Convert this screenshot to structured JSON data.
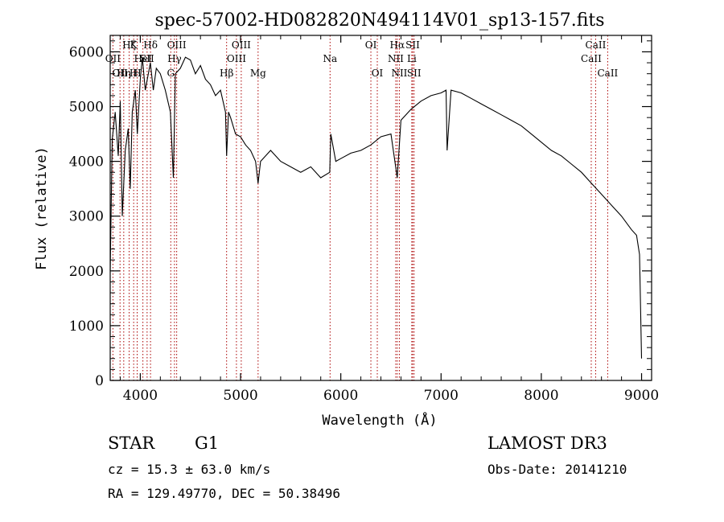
{
  "chart_data": {
    "type": "line",
    "title": "spec-57002-HD082820N494114V01_sp13-157.fits",
    "xlabel": "Wavelength (Å)",
    "ylabel": "Flux (relative)",
    "xlim": [
      3700,
      9100
    ],
    "ylim": [
      0,
      6300
    ],
    "xticks": [
      4000,
      5000,
      6000,
      7000,
      8000,
      9000
    ],
    "yticks": [
      0,
      1000,
      2000,
      3000,
      4000,
      5000,
      6000
    ],
    "grid": false,
    "line_color": "#000000",
    "marker_color": "#aa0000",
    "series": [
      {
        "x": [
          3700,
          3720,
          3750,
          3780,
          3800,
          3820,
          3850,
          3880,
          3900,
          3920,
          3950,
          3970,
          4000,
          4020,
          4050,
          4080,
          4100,
          4130,
          4160,
          4200,
          4250,
          4300,
          4330,
          4350,
          4400,
          4450,
          4500,
          4550,
          4600,
          4650,
          4700,
          4750,
          4800,
          4850,
          4861,
          4880,
          4900,
          4950,
          5000,
          5050,
          5100,
          5150,
          5175,
          5200,
          5250,
          5300,
          5400,
          5500,
          5600,
          5700,
          5800,
          5890,
          5900,
          5950,
          6000,
          6100,
          6200,
          6300,
          6400,
          6500,
          6563,
          6600,
          6700,
          6800,
          6900,
          7000,
          7050,
          7060,
          7100,
          7200,
          7300,
          7400,
          7500,
          7600,
          7700,
          7800,
          7900,
          8000,
          8100,
          8200,
          8300,
          8400,
          8500,
          8600,
          8700,
          8800,
          8900,
          8950,
          8980,
          9000
        ],
        "y": [
          2000,
          4400,
          4900,
          4100,
          5100,
          3000,
          4200,
          4600,
          3500,
          4900,
          5300,
          4500,
          5500,
          5900,
          5300,
          5600,
          5800,
          5300,
          5700,
          5600,
          5300,
          4900,
          3700,
          5600,
          5700,
          5900,
          5850,
          5600,
          5750,
          5500,
          5400,
          5200,
          5300,
          4900,
          4100,
          4900,
          4800,
          4500,
          4450,
          4300,
          4200,
          4000,
          3600,
          4000,
          4100,
          4200,
          4000,
          3900,
          3800,
          3900,
          3700,
          3800,
          4500,
          4000,
          4050,
          4150,
          4200,
          4300,
          4450,
          4500,
          3700,
          4750,
          4950,
          5100,
          5200,
          5250,
          5300,
          4200,
          5300,
          5250,
          5150,
          5050,
          4950,
          4850,
          4750,
          4650,
          4500,
          4350,
          4200,
          4100,
          3950,
          3800,
          3600,
          3400,
          3200,
          3000,
          2750,
          2650,
          2300,
          400
        ]
      }
    ],
    "lines": [
      {
        "w": 3727,
        "labels": [
          "OII"
        ],
        "row": 1
      },
      {
        "w": 3798,
        "labels": [
          "OII"
        ],
        "row": 2
      },
      {
        "w": 3835,
        "labels": [
          "Hη"
        ],
        "row": 2
      },
      {
        "w": 3889,
        "labels": [
          "Hζ"
        ],
        "row": 0
      },
      {
        "w": 3934,
        "labels": [
          "K",
          "H"
        ],
        "row": 0
      },
      {
        "w": 3969,
        "labels": [
          "H"
        ],
        "row": 2
      },
      {
        "w": 4026,
        "labels": [
          "HeI"
        ],
        "row": 1
      },
      {
        "w": 4068,
        "labels": [
          "SII"
        ],
        "row": 1
      },
      {
        "w": 4102,
        "labels": [
          "Hδ"
        ],
        "row": 0
      },
      {
        "w": 4304,
        "labels": [
          "G"
        ],
        "row": 2
      },
      {
        "w": 4341,
        "labels": [
          "Hγ"
        ],
        "row": 1
      },
      {
        "w": 4363,
        "labels": [
          "OIII"
        ],
        "row": 0
      },
      {
        "w": 4861,
        "labels": [
          "Hβ"
        ],
        "row": 2
      },
      {
        "w": 4959,
        "labels": [
          "OIII"
        ],
        "row": 1
      },
      {
        "w": 5007,
        "labels": [
          "OIII"
        ],
        "row": 0
      },
      {
        "w": 5175,
        "labels": [
          "Mg"
        ],
        "row": 2
      },
      {
        "w": 5893,
        "labels": [
          "Na"
        ],
        "row": 1
      },
      {
        "w": 6300,
        "labels": [
          "OI"
        ],
        "row": 0
      },
      {
        "w": 6364,
        "labels": [
          "OI"
        ],
        "row": 2
      },
      {
        "w": 6548,
        "labels": [
          "NII"
        ],
        "row": 1
      },
      {
        "w": 6563,
        "labels": [
          "Hα"
        ],
        "row": 0
      },
      {
        "w": 6584,
        "labels": [
          "NII"
        ],
        "row": 2
      },
      {
        "w": 6708,
        "labels": [
          "Li"
        ],
        "row": 1
      },
      {
        "w": 6717,
        "labels": [
          "SII"
        ],
        "row": 0
      },
      {
        "w": 6731,
        "labels": [
          "SII"
        ],
        "row": 2
      },
      {
        "w": 8498,
        "labels": [
          "CaII"
        ],
        "row": 1
      },
      {
        "w": 8542,
        "labels": [
          "CaII"
        ],
        "row": 0
      },
      {
        "w": 8662,
        "labels": [
          "CaII"
        ],
        "row": 2
      }
    ]
  },
  "info": {
    "object_class": "STAR",
    "subclass": "G1",
    "survey": "LAMOST DR3",
    "cz": "cz = 15.3 ± 63.0 km/s",
    "obs_date": "Obs-Date: 20141210",
    "coords": "RA = 129.49770, DEC =  50.38496"
  }
}
